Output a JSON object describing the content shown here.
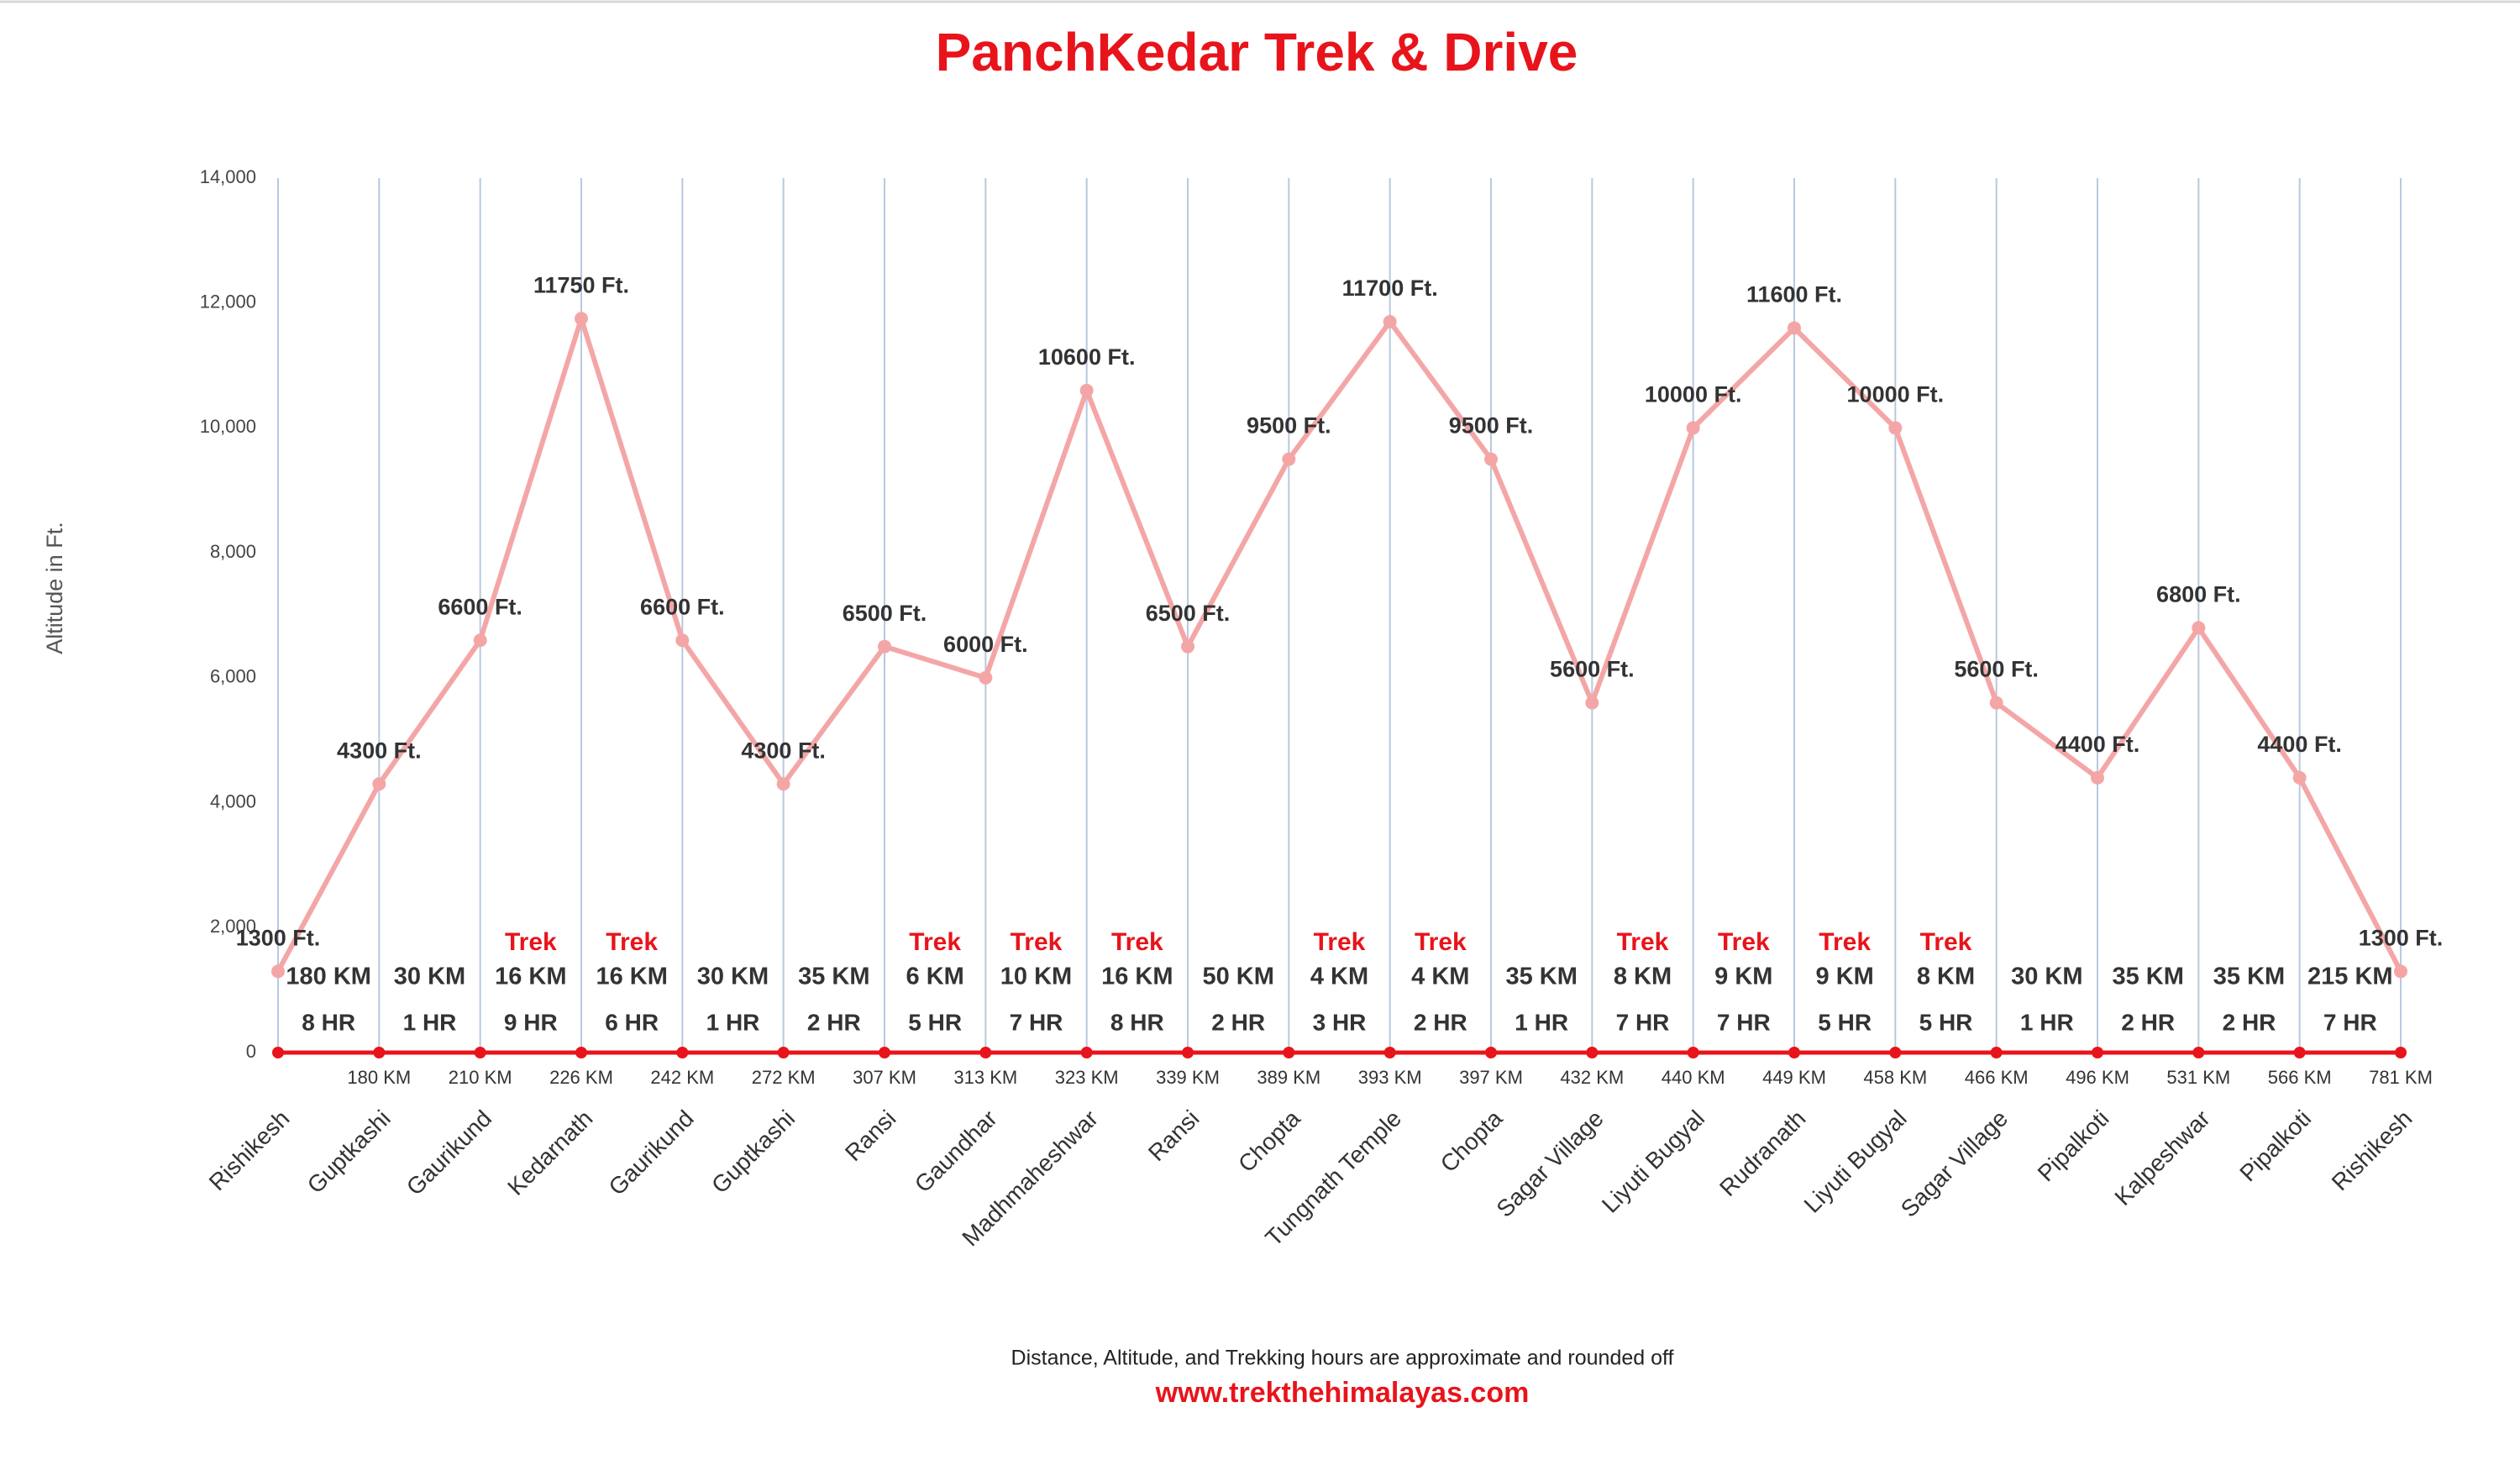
{
  "chart_data": {
    "type": "line",
    "title": "PanchKedar Trek & Drive",
    "y_label": "Altitude in Ft.",
    "categories": [
      "Rishikesh",
      "Guptkashi",
      "Gaurikund",
      "Kedarnath",
      "Gaurikund",
      "Guptkashi",
      "Ransi",
      "Gaundhar",
      "Madhmaheshwar",
      "Ransi",
      "Chopta",
      "Tungnath Temple",
      "Chopta",
      "Sagar Village",
      "Liyuti Bugyal",
      "Rudranath",
      "Liyuti Bugyal",
      "Sagar Village",
      "Pipalkoti",
      "Kalpeshwar",
      "Pipalkoti",
      "Rishikesh"
    ],
    "values": [
      1300,
      4300,
      6600,
      11750,
      6600,
      4300,
      6500,
      6000,
      10600,
      6500,
      9500,
      11700,
      9500,
      5600,
      10000,
      11600,
      10000,
      5600,
      4400,
      6800,
      4400,
      1300
    ],
    "value_labels": [
      "1300 Ft.",
      "4300 Ft.",
      "6600 Ft.",
      "11750 Ft.",
      "6600 Ft.",
      "4300 Ft.",
      "6500 Ft.",
      "6000 Ft.",
      "10600 Ft.",
      "6500 Ft.",
      "9500 Ft.",
      "11700 Ft.",
      "9500 Ft.",
      "5600 Ft.",
      "10000 Ft.",
      "11600 Ft.",
      "10000 Ft.",
      "5600 Ft.",
      "4400 Ft.",
      "6800 Ft.",
      "4400 Ft.",
      "1300 Ft."
    ],
    "cumulative_distances": [
      null,
      "180 KM",
      "210 KM",
      "226 KM",
      "242 KM",
      "272 KM",
      "307 KM",
      "313 KM",
      "323 KM",
      "339 KM",
      "389 KM",
      "393 KM",
      "397 KM",
      "432 KM",
      "440 KM",
      "449 KM",
      "458 KM",
      "466 KM",
      "496 KM",
      "531 KM",
      "566 KM",
      "781 KM"
    ],
    "segments": [
      {
        "distance": "180 KM",
        "time": "8 HR"
      },
      {
        "distance": "30 KM",
        "time": "1 HR"
      },
      {
        "mode": "Trek",
        "distance": "16 KM",
        "time": "9 HR"
      },
      {
        "mode": "Trek",
        "distance": "16 KM",
        "time": "6 HR"
      },
      {
        "distance": "30 KM",
        "time": "1 HR"
      },
      {
        "distance": "35 KM",
        "time": "2 HR"
      },
      {
        "mode": "Trek",
        "distance": "6 KM",
        "time": "5 HR"
      },
      {
        "mode": "Trek",
        "distance": "10 KM",
        "time": "7 HR"
      },
      {
        "mode": "Trek",
        "distance": "16 KM",
        "time": "8 HR"
      },
      {
        "distance": "50 KM",
        "time": "2 HR"
      },
      {
        "mode": "Trek",
        "distance": "4 KM",
        "time": "3 HR"
      },
      {
        "mode": "Trek",
        "distance": "4 KM",
        "time": "2 HR"
      },
      {
        "distance": "35 KM",
        "time": "1 HR"
      },
      {
        "mode": "Trek",
        "distance": "8 KM",
        "time": "7 HR"
      },
      {
        "mode": "Trek",
        "distance": "9 KM",
        "time": "7 HR"
      },
      {
        "mode": "Trek",
        "distance": "9 KM",
        "time": "5 HR"
      },
      {
        "mode": "Trek",
        "distance": "8 KM",
        "time": "5 HR"
      },
      {
        "distance": "30 KM",
        "time": "1 HR"
      },
      {
        "distance": "35 KM",
        "time": "2 HR"
      },
      {
        "distance": "35 KM",
        "time": "2 HR"
      },
      {
        "distance": "215 KM",
        "time": "7 HR"
      }
    ],
    "color": "#f4a6a6",
    "baseline_color": "#e8141b",
    "grid": true,
    "ylim": [
      0,
      14000
    ],
    "yticks": [
      0,
      {
        "value": 2000,
        "label": "2,000"
      },
      {
        "value": 4000,
        "label": "4,000"
      },
      {
        "value": 6000,
        "label": "6,000"
      },
      {
        "value": 8000,
        "label": "8,000"
      },
      {
        "value": 10000,
        "label": "10,000"
      },
      {
        "value": 12000,
        "label": "12,000"
      },
      {
        "value": 14000,
        "label": "14,000"
      }
    ]
  },
  "footer": {
    "note": "Distance, Altitude, and Trekking hours are approximate and rounded off",
    "website": "www.trekthehimalayas.com"
  }
}
